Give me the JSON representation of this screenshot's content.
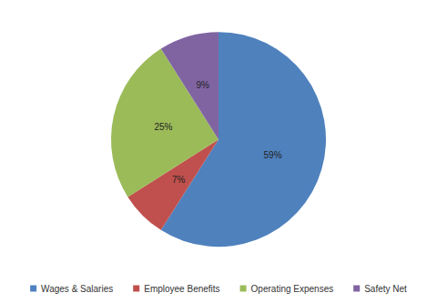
{
  "chart_data": {
    "type": "pie",
    "categories": [
      "Wages & Salaries",
      "Employee Benefits",
      "Operating Expenses",
      "Safety Net"
    ],
    "values": [
      59,
      7,
      25,
      9
    ],
    "value_labels": [
      "59%",
      "7%",
      "25%",
      "9%"
    ],
    "colors": [
      "#4f81bd",
      "#c0504d",
      "#9bbb59",
      "#8064a2"
    ],
    "data_labels": true,
    "legend": "bottom"
  }
}
